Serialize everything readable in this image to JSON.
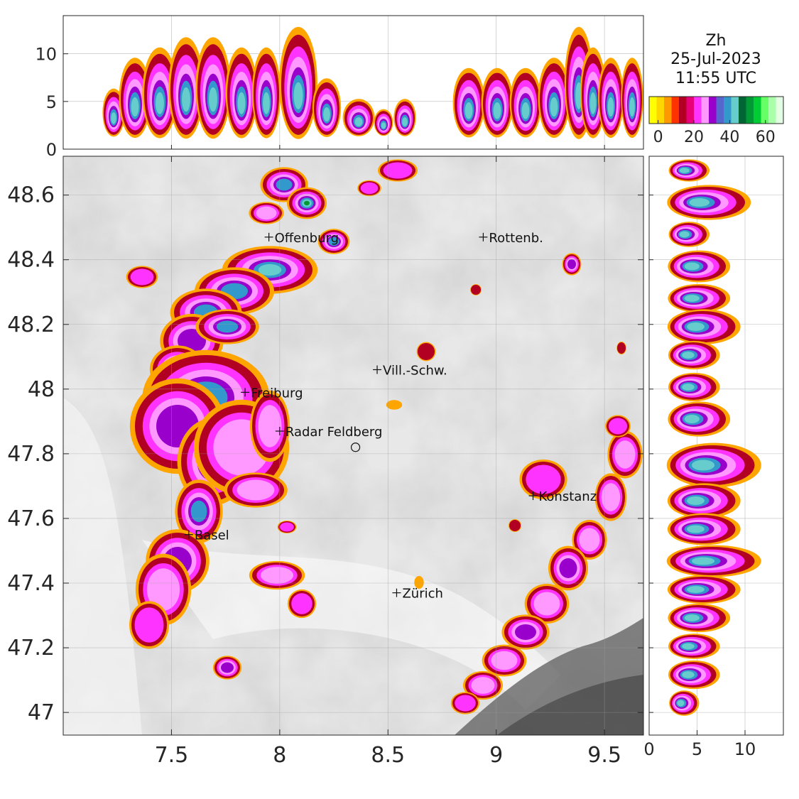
{
  "title": {
    "variable": "Zh",
    "date": "25-Jul-2023",
    "time": "11:55 UTC"
  },
  "colorbar": {
    "tick_labels": [
      "0",
      "20",
      "40",
      "60"
    ],
    "tick_values": [
      0,
      20,
      40,
      60
    ],
    "range": [
      -5,
      70
    ],
    "colors": [
      "#ffff00",
      "#ffd700",
      "#ff9900",
      "#ff3300",
      "#b20022",
      "#e8007a",
      "#ff33ff",
      "#ff99ff",
      "#9900cc",
      "#5566cc",
      "#3399cc",
      "#66cccc",
      "#006633",
      "#009933",
      "#00cc33",
      "#66ff66",
      "#aaffaa",
      "#e5ffe5"
    ]
  },
  "map": {
    "x_ticks": [
      "7.5",
      "8",
      "8.5",
      "9",
      "9.5"
    ],
    "x_tick_values": [
      7.5,
      8,
      8.5,
      9,
      9.5
    ],
    "y_ticks": [
      "47",
      "47.2",
      "47.4",
      "47.6",
      "47.8",
      "48",
      "48.2",
      "48.4",
      "48.6"
    ],
    "y_tick_values": [
      47,
      47.2,
      47.4,
      47.6,
      47.8,
      48,
      48.2,
      48.4,
      48.6
    ],
    "xlim": [
      7.0,
      9.68
    ],
    "ylim": [
      46.93,
      48.72
    ],
    "grid": true,
    "cities": [
      {
        "name": "Offenburg",
        "lon": 7.95,
        "lat": 48.47
      },
      {
        "name": "Rottenb.",
        "lon": 8.94,
        "lat": 48.47
      },
      {
        "name": "Vill.-Schw.",
        "lon": 8.45,
        "lat": 48.06
      },
      {
        "name": "Freiburg",
        "lon": 7.84,
        "lat": 47.99
      },
      {
        "name": "Radar Feldberg",
        "lon": 8.0,
        "lat": 47.87
      },
      {
        "name": "Konstanz",
        "lon": 9.17,
        "lat": 47.67
      },
      {
        "name": "Basel",
        "lon": 7.58,
        "lat": 47.55
      },
      {
        "name": "Zürich",
        "lon": 8.54,
        "lat": 47.37
      }
    ],
    "radar_site": {
      "lon": 8.35,
      "lat": 47.82
    }
  },
  "top_panel": {
    "y_ticks": [
      "0",
      "5",
      "10"
    ],
    "y_tick_values": [
      0,
      5,
      10
    ],
    "ylim": [
      0,
      14
    ],
    "grid": true
  },
  "right_panel": {
    "x_ticks": [
      "0",
      "5",
      "10"
    ],
    "x_tick_values": [
      0,
      5,
      10
    ],
    "xlim": [
      0,
      14
    ],
    "grid": true
  }
}
